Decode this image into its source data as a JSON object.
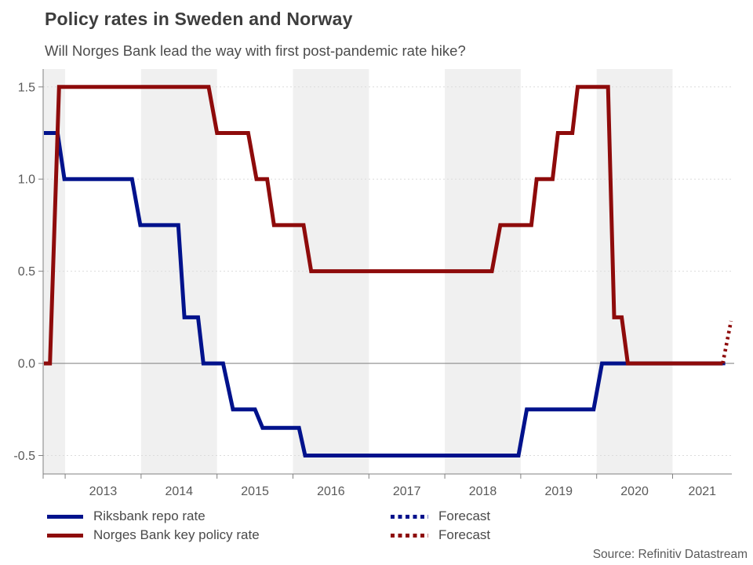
{
  "colors": {
    "riksbank_blue": "#00128c",
    "norges_red": "#8e0b0b",
    "year_band": "#f0f0f0",
    "grid_line": "#dcdcdc",
    "zero_line": "#8a8a8a",
    "axis_line": "#808080",
    "tick_text": "#595959",
    "title_text": "#3d3d3d",
    "subtitle_text": "#4c4c4c",
    "legend_text": "#4a4a4a"
  },
  "chart_data": {
    "type": "line",
    "step": true,
    "title": "Policy rates in Sweden and Norway",
    "subtitle": "Will Norges Bank lead the way with first post-pandemic rate hike?",
    "source": "Source: Refinitiv Datastream",
    "x_axis": {
      "range": [
        2012.71,
        2021.78
      ],
      "tick_years": [
        2013,
        2014,
        2015,
        2016,
        2017,
        2018,
        2019,
        2020,
        2021
      ],
      "year_labels": [
        "2013",
        "2014",
        "2015",
        "2016",
        "2017",
        "2018",
        "2019",
        "2020",
        "2021"
      ]
    },
    "y_axis": {
      "range": [
        -0.6,
        1.597
      ],
      "ticks": [
        -0.5,
        0.0,
        0.5,
        1.0,
        1.5
      ],
      "tick_labels": [
        "-0.5",
        "0.0",
        "0.5",
        "1.0",
        "1.5"
      ],
      "zero_line": 0.0,
      "grid": "dashed"
    },
    "shaded_bands": [
      [
        2012.71,
        2013
      ],
      [
        2014,
        2015
      ],
      [
        2016,
        2017
      ],
      [
        2018,
        2019
      ],
      [
        2020,
        2021
      ]
    ],
    "series": [
      {
        "name": "Riksbank repo rate",
        "color": "#00128c",
        "style": "solid",
        "points": [
          [
            2012.72,
            1.25
          ],
          [
            2012.9,
            1.25
          ],
          [
            2012.99,
            1.0
          ],
          [
            2013.88,
            1.0
          ],
          [
            2013.99,
            0.75
          ],
          [
            2014.49,
            0.75
          ],
          [
            2014.57,
            0.25
          ],
          [
            2014.75,
            0.25
          ],
          [
            2014.82,
            0.0
          ],
          [
            2015.08,
            0.0
          ],
          [
            2015.21,
            -0.25
          ],
          [
            2015.5,
            -0.25
          ],
          [
            2015.6,
            -0.35
          ],
          [
            2016.08,
            -0.35
          ],
          [
            2016.16,
            -0.5
          ],
          [
            2018.97,
            -0.5
          ],
          [
            2019.08,
            -0.25
          ],
          [
            2019.96,
            -0.25
          ],
          [
            2020.07,
            0.0
          ],
          [
            2021.66,
            0.0
          ]
        ]
      },
      {
        "name": "Norges Bank key policy rate",
        "color": "#8e0b0b",
        "style": "solid",
        "points": [
          [
            2012.72,
            0.0
          ],
          [
            2012.8,
            0.0
          ],
          [
            2012.92,
            1.5
          ],
          [
            2014.89,
            1.5
          ],
          [
            2015.0,
            1.25
          ],
          [
            2015.41,
            1.25
          ],
          [
            2015.52,
            1.0
          ],
          [
            2015.66,
            1.0
          ],
          [
            2015.75,
            0.75
          ],
          [
            2016.14,
            0.75
          ],
          [
            2016.24,
            0.5
          ],
          [
            2018.62,
            0.5
          ],
          [
            2018.73,
            0.75
          ],
          [
            2019.14,
            0.75
          ],
          [
            2019.21,
            1.0
          ],
          [
            2019.42,
            1.0
          ],
          [
            2019.49,
            1.25
          ],
          [
            2019.68,
            1.25
          ],
          [
            2019.75,
            1.5
          ],
          [
            2020.15,
            1.5
          ],
          [
            2020.23,
            0.25
          ],
          [
            2020.33,
            0.25
          ],
          [
            2020.41,
            0.0
          ],
          [
            2021.66,
            0.0
          ]
        ]
      },
      {
        "name": "Forecast",
        "color": "#00128c",
        "style": "dotted",
        "points": [
          [
            2021.66,
            0.0
          ],
          [
            2021.74,
            0.0
          ]
        ]
      },
      {
        "name": "Forecast",
        "color": "#8e0b0b",
        "style": "dotted",
        "points": [
          [
            2021.66,
            0.0
          ],
          [
            2021.77,
            0.23
          ]
        ]
      }
    ],
    "legend": {
      "position": "bottom",
      "items": [
        {
          "label": "Riksbank repo rate",
          "color": "#00128c",
          "style": "solid"
        },
        {
          "label": "Norges Bank key policy rate",
          "color": "#8e0b0b",
          "style": "solid"
        },
        {
          "label": "Forecast",
          "color": "#00128c",
          "style": "dotted"
        },
        {
          "label": "Forecast",
          "color": "#8e0b0b",
          "style": "dotted"
        }
      ]
    }
  }
}
